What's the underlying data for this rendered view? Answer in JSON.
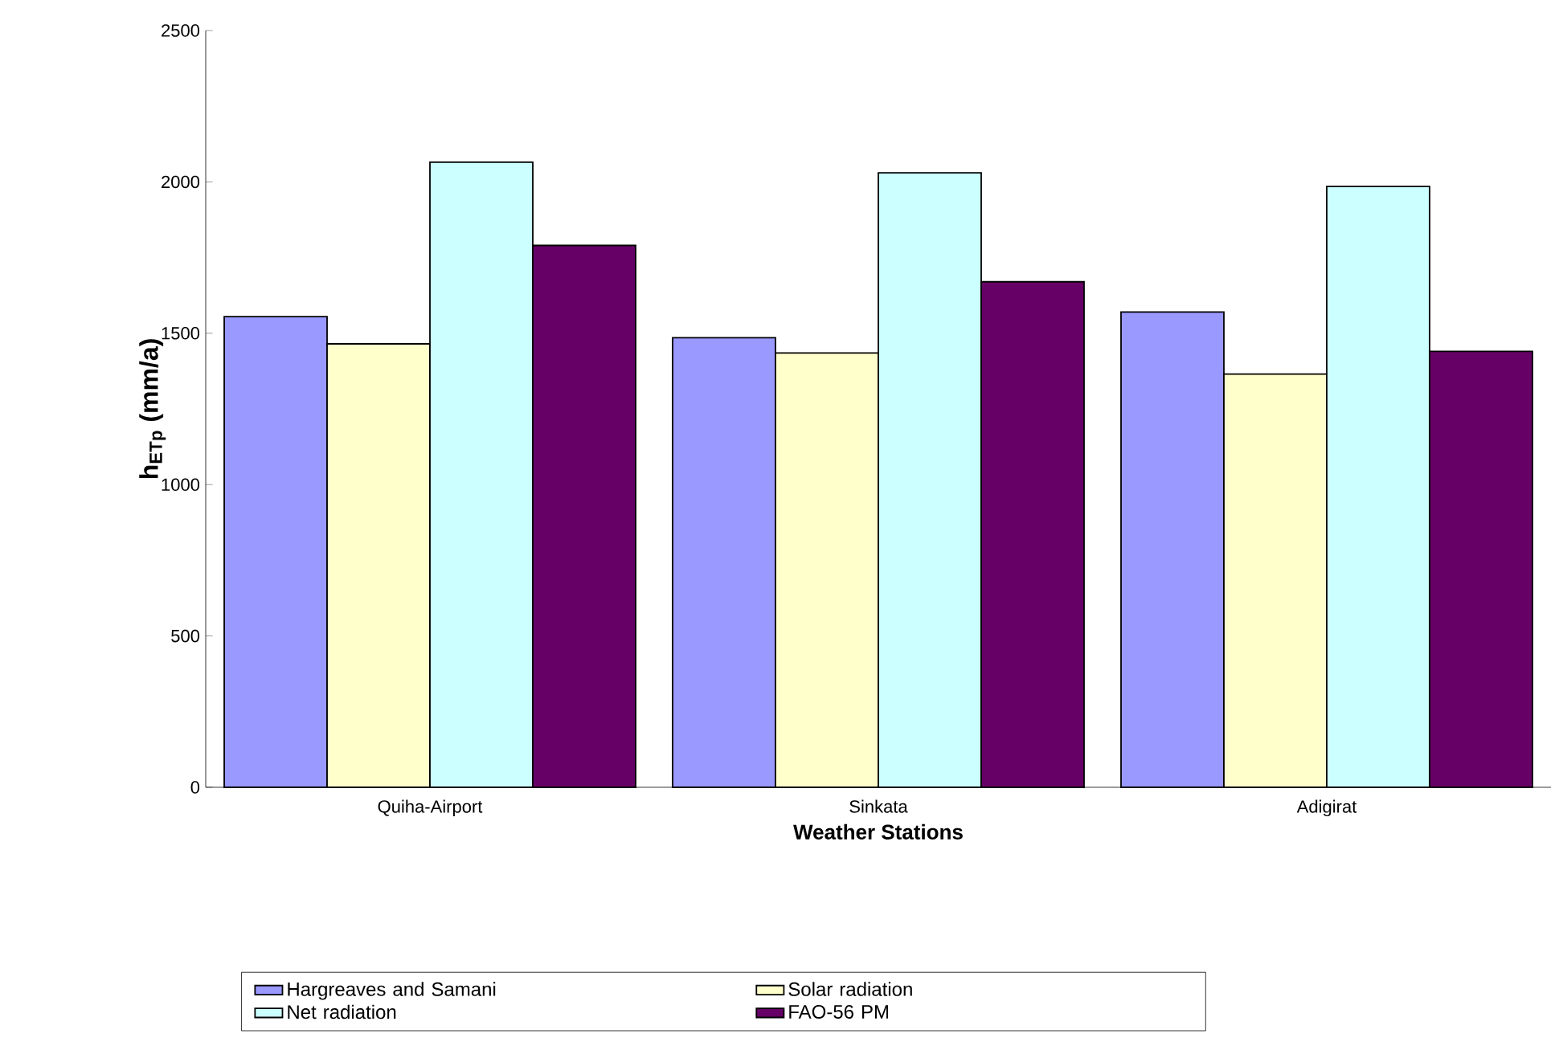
{
  "chart_data": {
    "type": "bar",
    "xlabel": "Weather Stations",
    "ylabel": "h$_{ETp}$ (mm/a)",
    "categories": [
      "Quiha-Airport",
      "Sinkata",
      "Adigirat"
    ],
    "series": [
      {
        "name": "Hargreaves and Samani",
        "color": "#9999ff",
        "values": [
          1555,
          1485,
          1570
        ]
      },
      {
        "name": "Solar radiation",
        "color": "#ffffcc",
        "values": [
          1465,
          1435,
          1365
        ]
      },
      {
        "name": "Net radiation",
        "color": "#ccffff",
        "values": [
          2065,
          2030,
          1985
        ]
      },
      {
        "name": "FAO-56 PM",
        "color": "#660066",
        "values": [
          1790,
          1670,
          1440
        ]
      }
    ],
    "ylim": [
      0,
      2500
    ],
    "yticks": [
      0,
      500,
      1000,
      1500,
      2000,
      2500
    ],
    "grid": false,
    "legend": "bottom"
  }
}
